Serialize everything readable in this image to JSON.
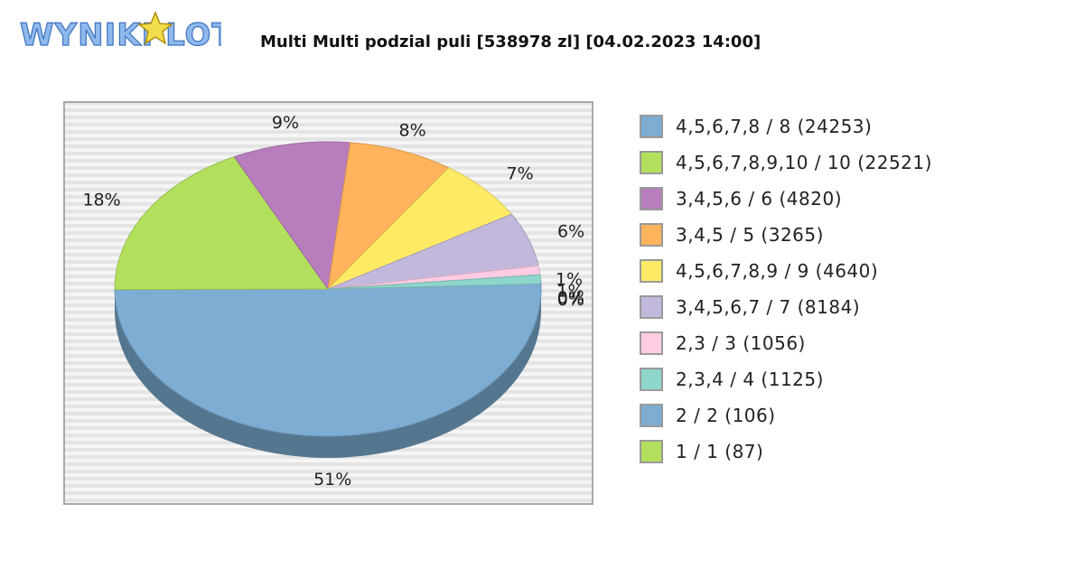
{
  "logo": {
    "text": "WYNIKI LOTTO"
  },
  "chart_data": {
    "type": "pie",
    "title": "Multi Multi podzial puli [538978 zl] [04.02.2023 14:00]",
    "legend_position": "right",
    "slices": [
      {
        "label": "4,5,6,7,8 / 8 (24253)",
        "value": 24253,
        "percent_label": "51%",
        "color": "#7dadd3"
      },
      {
        "label": "4,5,6,7,8,9,10 / 10 (22521)",
        "value": 22521,
        "percent_label": "18%",
        "color": "#b3e05c"
      },
      {
        "label": "3,4,5,6 / 6 (4820)",
        "value": 4820,
        "percent_label": "9%",
        "color": "#b87dbd"
      },
      {
        "label": "3,4,5 / 5 (3265)",
        "value": 3265,
        "percent_label": "8%",
        "color": "#ffb35c"
      },
      {
        "label": "4,5,6,7,8,9 / 9 (4640)",
        "value": 4640,
        "percent_label": "7%",
        "color": "#ffea66"
      },
      {
        "label": "3,4,5,6,7 / 7 (8184)",
        "value": 8184,
        "percent_label": "6%",
        "color": "#c2b8dc"
      },
      {
        "label": "2,3 / 3 (1056)",
        "value": 1056,
        "percent_label": "1%",
        "color": "#ffcce3"
      },
      {
        "label": "2,3,4 / 4 (1125)",
        "value": 1125,
        "percent_label": "1%",
        "color": "#8ed6cc"
      },
      {
        "label": "2 / 2 (106)",
        "value": 106,
        "percent_label": "0%",
        "color": "#7dadd3"
      },
      {
        "label": "1 / 1 (87)",
        "value": 87,
        "percent_label": "0%",
        "color": "#b3e05c"
      }
    ],
    "pie_share_percent": [
      51,
      18,
      9,
      8,
      7,
      6,
      1,
      1,
      0,
      0
    ]
  }
}
